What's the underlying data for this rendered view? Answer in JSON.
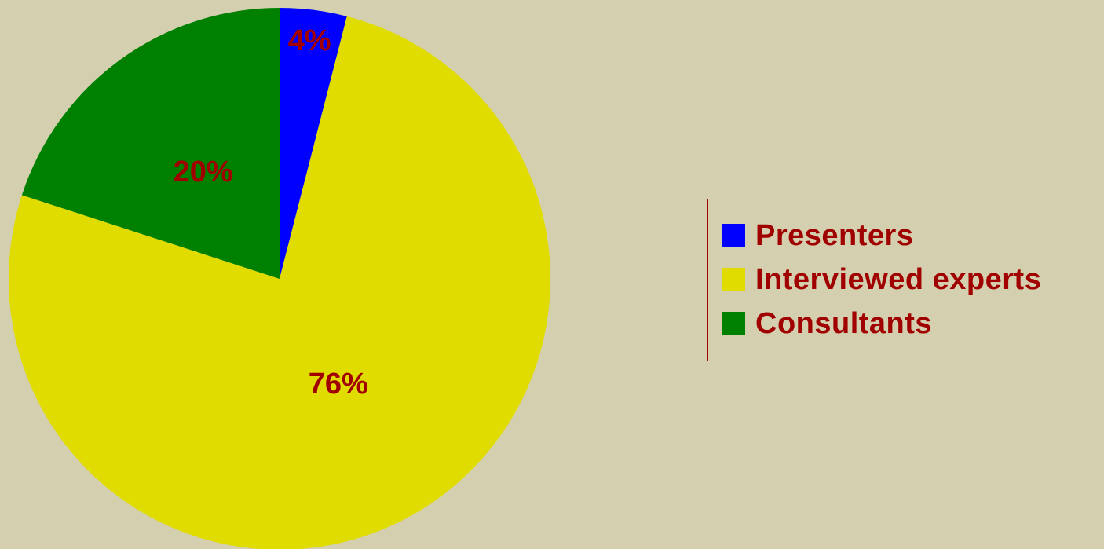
{
  "chart_data": {
    "type": "pie",
    "title": "",
    "slices": [
      {
        "name": "Presenters",
        "value": 4,
        "label": "4%",
        "color": "#0000ff"
      },
      {
        "name": "Interviewed experts",
        "value": 76,
        "label": "76%",
        "color": "#e0dc00"
      },
      {
        "name": "Consultants",
        "value": 20,
        "label": "20%",
        "color": "#008000"
      }
    ],
    "legend_position": "right",
    "start_angle": "12 o'clock",
    "direction": "clockwise",
    "label_color": "#a00000",
    "background_color": "#d4cfae"
  },
  "legend": {
    "items": [
      {
        "label": "Presenters",
        "color": "#0000ff"
      },
      {
        "label": "Interviewed experts",
        "color": "#e0dc00"
      },
      {
        "label": "Consultants",
        "color": "#008000"
      }
    ]
  }
}
